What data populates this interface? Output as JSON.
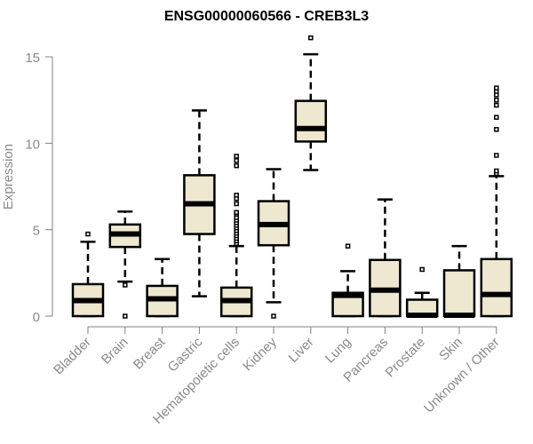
{
  "chart_data": {
    "type": "boxplot",
    "title": "ENSG00000060566 - CREB3L3",
    "xlabel": "",
    "ylabel": "Expression",
    "ylim": [
      0,
      15
    ],
    "yticks": [
      0,
      5,
      10,
      15
    ],
    "grid": false,
    "colors": {
      "box_fill": "#EEE8D0",
      "box_stroke": "#000000",
      "axis": "#808080",
      "label": "#8a8a8a"
    },
    "categories": [
      "Bladder",
      "Brain",
      "Breast",
      "Gastric",
      "Hematopoietic cells",
      "Kidney",
      "Liver",
      "Lung",
      "Pancreas",
      "Prostate",
      "Skin",
      "Unknown / Other"
    ],
    "boxes": [
      {
        "name": "Bladder",
        "whisker_low": 0,
        "q1": 0,
        "median": 0.9,
        "q3": 1.85,
        "whisker_high": 4.3,
        "outliers": [
          4.75
        ]
      },
      {
        "name": "Brain",
        "whisker_low": 2.0,
        "q1": 4.0,
        "median": 4.75,
        "q3": 5.3,
        "whisker_high": 6.05,
        "outliers": [
          1.8,
          0
        ]
      },
      {
        "name": "Breast",
        "whisker_low": 0,
        "q1": 0,
        "median": 1.0,
        "q3": 1.75,
        "whisker_high": 3.3,
        "outliers": []
      },
      {
        "name": "Gastric",
        "whisker_low": 1.15,
        "q1": 4.75,
        "median": 6.5,
        "q3": 8.15,
        "whisker_high": 11.9,
        "outliers": []
      },
      {
        "name": "Hematopoietic cells",
        "whisker_low": 0,
        "q1": 0,
        "median": 0.9,
        "q3": 1.65,
        "whisker_high": 4.05,
        "outliers": [
          4.2,
          4.35,
          4.5,
          4.65,
          4.8,
          4.95,
          5.1,
          5.25,
          5.4,
          5.55,
          5.7,
          5.9,
          6.0,
          6.5,
          6.8,
          7.0,
          8.7,
          9.0,
          9.25
        ]
      },
      {
        "name": "Kidney",
        "whisker_low": 0.8,
        "q1": 4.1,
        "median": 5.3,
        "q3": 6.65,
        "whisker_high": 8.5,
        "outliers": [
          0
        ]
      },
      {
        "name": "Liver",
        "whisker_low": 8.45,
        "q1": 10.1,
        "median": 10.85,
        "q3": 12.45,
        "whisker_high": 15.15,
        "outliers": [
          16.1
        ]
      },
      {
        "name": "Lung",
        "whisker_low": 0,
        "q1": 0,
        "median": 1.2,
        "q3": 1.35,
        "whisker_high": 2.6,
        "outliers": [
          4.05
        ]
      },
      {
        "name": "Pancreas",
        "whisker_low": 0,
        "q1": 0,
        "median": 1.5,
        "q3": 3.25,
        "whisker_high": 6.75,
        "outliers": []
      },
      {
        "name": "Prostate",
        "whisker_low": 0,
        "q1": 0,
        "median": 0.05,
        "q3": 0.95,
        "whisker_high": 1.35,
        "outliers": [
          2.7
        ]
      },
      {
        "name": "Skin",
        "whisker_low": 0,
        "q1": 0,
        "median": 0.05,
        "q3": 2.65,
        "whisker_high": 4.05,
        "outliers": []
      },
      {
        "name": "Unknown / Other",
        "whisker_low": 0,
        "q1": 0,
        "median": 1.25,
        "q3": 3.3,
        "whisker_high": 8.1,
        "outliers": [
          8.25,
          8.4,
          9.3,
          10.8,
          11.5,
          12.2,
          12.5,
          12.8,
          13.0,
          13.2
        ]
      }
    ]
  }
}
